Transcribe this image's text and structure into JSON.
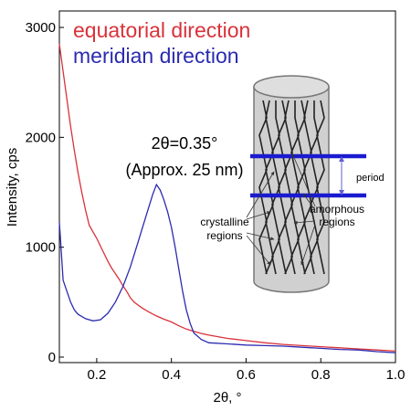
{
  "chart_data": {
    "type": "line",
    "xlabel": "2θ, °",
    "ylabel": "Intensity, cps",
    "xlim": [
      0.1,
      1.0
    ],
    "ylim": [
      -50,
      3150
    ],
    "x_ticks": [
      "0.2",
      "0.4",
      "0.6",
      "0.8",
      "1.0"
    ],
    "x_tick_values": [
      0.2,
      0.4,
      0.6,
      0.8,
      1.0
    ],
    "y_ticks": [
      "0",
      "1000",
      "2000",
      "3000"
    ],
    "y_tick_values": [
      0,
      1000,
      2000,
      3000
    ],
    "legend_position": "top-left",
    "series": [
      {
        "name": "equatorial direction",
        "color": "#d9323a",
        "points": [
          [
            0.1,
            2850
          ],
          [
            0.11,
            2600
          ],
          [
            0.12,
            2350
          ],
          [
            0.13,
            2100
          ],
          [
            0.14,
            1880
          ],
          [
            0.15,
            1680
          ],
          [
            0.16,
            1500
          ],
          [
            0.17,
            1340
          ],
          [
            0.18,
            1200
          ],
          [
            0.19,
            1140
          ],
          [
            0.2,
            1080
          ],
          [
            0.21,
            1010
          ],
          [
            0.22,
            940
          ],
          [
            0.23,
            870
          ],
          [
            0.24,
            810
          ],
          [
            0.25,
            760
          ],
          [
            0.26,
            710
          ],
          [
            0.27,
            650
          ],
          [
            0.28,
            600
          ],
          [
            0.29,
            540
          ],
          [
            0.3,
            500
          ],
          [
            0.32,
            450
          ],
          [
            0.34,
            410
          ],
          [
            0.36,
            375
          ],
          [
            0.38,
            345
          ],
          [
            0.4,
            320
          ],
          [
            0.42,
            285
          ],
          [
            0.44,
            255
          ],
          [
            0.46,
            235
          ],
          [
            0.48,
            215
          ],
          [
            0.5,
            200
          ],
          [
            0.55,
            170
          ],
          [
            0.6,
            150
          ],
          [
            0.65,
            130
          ],
          [
            0.7,
            115
          ],
          [
            0.75,
            105
          ],
          [
            0.8,
            95
          ],
          [
            0.85,
            85
          ],
          [
            0.9,
            75
          ],
          [
            0.95,
            65
          ],
          [
            1.0,
            55
          ]
        ]
      },
      {
        "name": "meridian direction",
        "color": "#2b2bb0",
        "points": [
          [
            0.1,
            1230
          ],
          [
            0.11,
            700
          ],
          [
            0.12,
            600
          ],
          [
            0.13,
            500
          ],
          [
            0.14,
            430
          ],
          [
            0.15,
            390
          ],
          [
            0.17,
            350
          ],
          [
            0.19,
            330
          ],
          [
            0.21,
            340
          ],
          [
            0.23,
            400
          ],
          [
            0.25,
            500
          ],
          [
            0.27,
            640
          ],
          [
            0.29,
            820
          ],
          [
            0.31,
            1040
          ],
          [
            0.33,
            1260
          ],
          [
            0.35,
            1480
          ],
          [
            0.36,
            1570
          ],
          [
            0.37,
            1520
          ],
          [
            0.38,
            1430
          ],
          [
            0.39,
            1320
          ],
          [
            0.4,
            1180
          ],
          [
            0.41,
            1000
          ],
          [
            0.42,
            800
          ],
          [
            0.43,
            600
          ],
          [
            0.44,
            430
          ],
          [
            0.45,
            310
          ],
          [
            0.46,
            220
          ],
          [
            0.48,
            160
          ],
          [
            0.5,
            130
          ],
          [
            0.55,
            120
          ],
          [
            0.6,
            110
          ],
          [
            0.65,
            105
          ],
          [
            0.7,
            100
          ],
          [
            0.75,
            90
          ],
          [
            0.8,
            80
          ],
          [
            0.85,
            70
          ],
          [
            0.9,
            65
          ],
          [
            0.95,
            50
          ],
          [
            1.0,
            40
          ]
        ]
      }
    ],
    "annotations": {
      "peak_line1": "2θ=0.35°",
      "peak_line2": "(Approx. 25 nm)",
      "inset_period": "period",
      "inset_amorphous_line1": "amorphous",
      "inset_amorphous_line2": "regions",
      "inset_crystalline_line1": "crystalline",
      "inset_crystalline_line2": "regions"
    },
    "inset_colors": {
      "cylinder_fill": "#d0d0d0",
      "cylinder_stroke": "#777777",
      "period_bar": "#1a1ad0",
      "period_arrow": "#6060d0"
    }
  }
}
